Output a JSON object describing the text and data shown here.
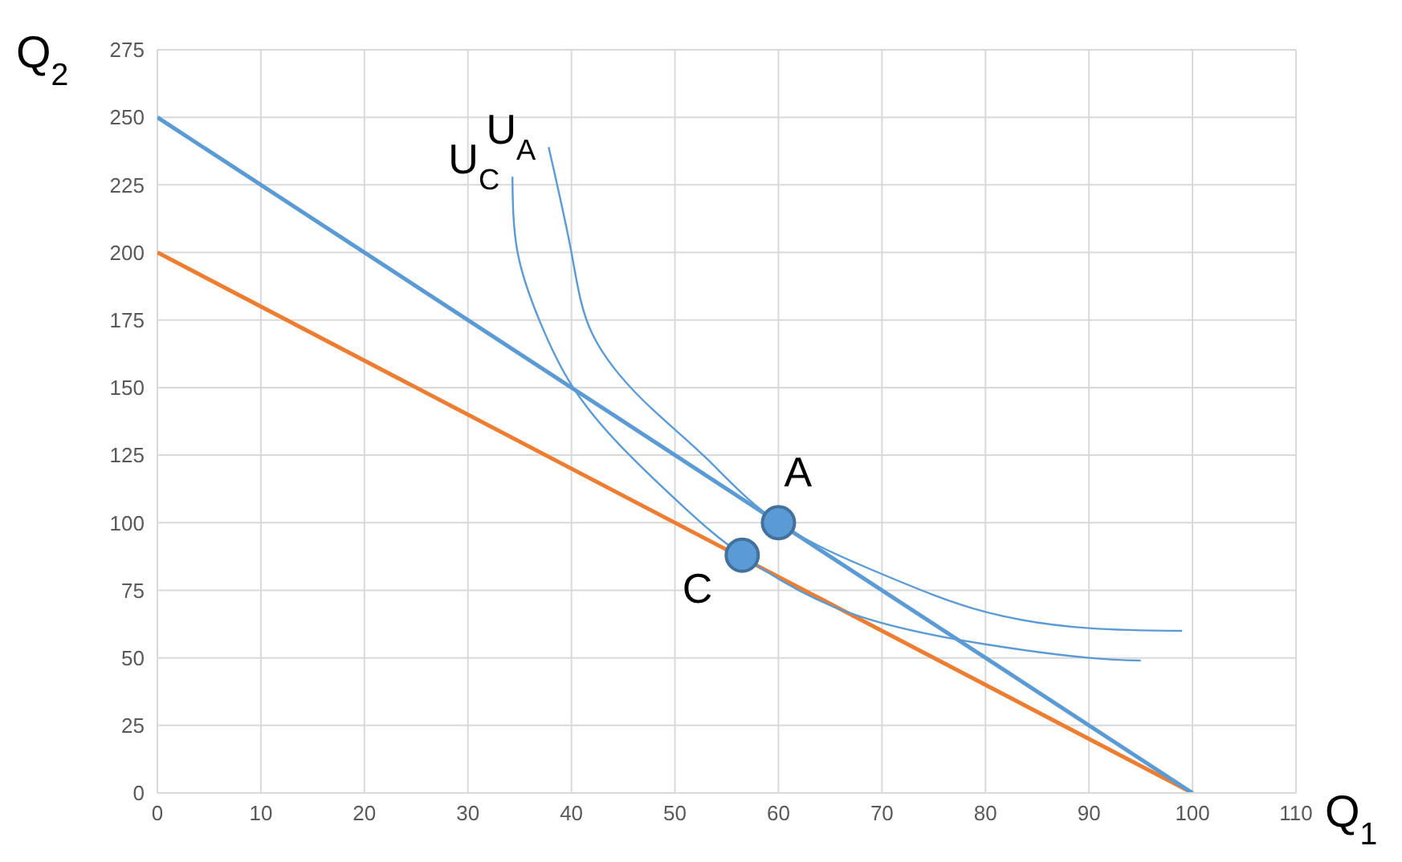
{
  "chart_data": {
    "type": "line",
    "xlabel": "Q$_{1}$",
    "ylabel": "Q$_{2}$",
    "xlim": [
      0,
      110
    ],
    "xticks": [
      0,
      10,
      20,
      30,
      40,
      50,
      60,
      70,
      80,
      90,
      100,
      110
    ],
    "ylim": [
      0,
      275
    ],
    "yticks": [
      0,
      25,
      50,
      75,
      100,
      125,
      150,
      175,
      200,
      225,
      250,
      275
    ],
    "grid": true,
    "series": [
      {
        "color": "#ed7d31",
        "x": [
          0,
          100
        ],
        "values": [
          200,
          0
        ],
        "marker": "none"
      },
      {
        "color": "#5b9bd5",
        "x": [
          0,
          100
        ],
        "values": [
          250,
          0
        ],
        "marker": "none"
      },
      {
        "name": "U$_{C}$",
        "color": "#5b9bd5",
        "x": [
          34.3,
          34.8,
          37,
          40,
          44.6,
          50.8,
          56.5,
          66.6,
          80,
          90,
          95
        ],
        "values": [
          228,
          200,
          174,
          151,
          129,
          106,
          88,
          67,
          55,
          50,
          49
        ],
        "marker": "none"
      },
      {
        "name": "U$_{A}$",
        "color": "#5b9bd5",
        "x": [
          37.8,
          40,
          42,
          47,
          53,
          60,
          70,
          80,
          90,
          99
        ],
        "values": [
          239,
          200,
          170,
          145,
          124,
          100,
          81,
          67,
          61,
          60
        ],
        "marker": "none"
      },
      {
        "type": "scatter",
        "name": "A",
        "color": "#5b9bd5",
        "x": [
          60
        ],
        "values": [
          100
        ],
        "marker": "circle"
      },
      {
        "type": "scatter",
        "name": "C",
        "color": "#5b9bd5",
        "x": [
          56.5
        ],
        "values": [
          88
        ],
        "marker": "circle"
      }
    ]
  }
}
